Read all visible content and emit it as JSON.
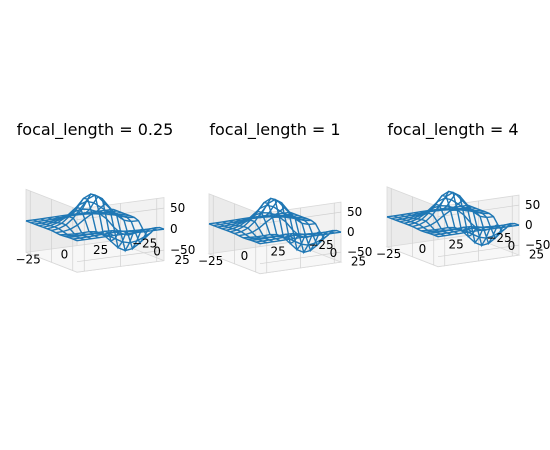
{
  "figure": {
    "background": "#ffffff"
  },
  "chart_data": [
    {
      "type": "surface-wireframe-3d",
      "title": "focal_length = 0.25",
      "focal_length": 0.25,
      "x_ticks": [
        "−25",
        "0",
        "25"
      ],
      "y_ticks": [
        "−25",
        "0",
        "25"
      ],
      "z_ticks": [
        "−50",
        "0",
        "50"
      ],
      "xlim": [
        -30,
        30
      ],
      "ylim": [
        -30,
        30
      ],
      "zlim": [
        -75,
        75
      ],
      "grid": true,
      "line_color": "#1f77b4"
    },
    {
      "type": "surface-wireframe-3d",
      "title": "focal_length = 1",
      "focal_length": 1,
      "x_ticks": [
        "−25",
        "0",
        "25"
      ],
      "y_ticks": [
        "−25",
        "0",
        "25"
      ],
      "z_ticks": [
        "−50",
        "0",
        "50"
      ],
      "xlim": [
        -30,
        30
      ],
      "ylim": [
        -30,
        30
      ],
      "zlim": [
        -75,
        75
      ],
      "grid": true,
      "line_color": "#1f77b4"
    },
    {
      "type": "surface-wireframe-3d",
      "title": "focal_length = 4",
      "focal_length": 4,
      "x_ticks": [
        "−25",
        "0",
        "25"
      ],
      "y_ticks": [
        "−25",
        "0",
        "25"
      ],
      "z_ticks": [
        "−50",
        "0",
        "50"
      ],
      "xlim": [
        -30,
        30
      ],
      "ylim": [
        -30,
        30
      ],
      "zlim": [
        -75,
        75
      ],
      "grid": true,
      "line_color": "#1f77b4"
    }
  ]
}
